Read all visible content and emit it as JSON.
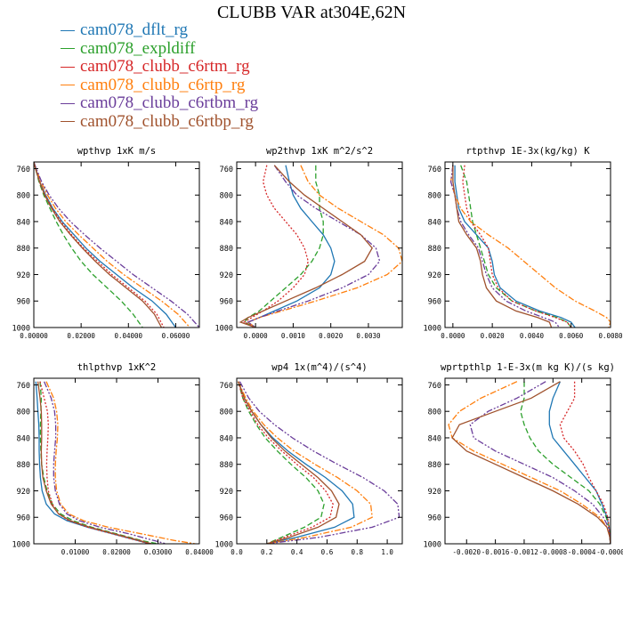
{
  "title": "CLUBB VAR at304E,62N",
  "legend": [
    {
      "name": "cam078_dflt_rg",
      "color": "#1f77b4"
    },
    {
      "name": "cam078_expldiff",
      "color": "#2ca02c"
    },
    {
      "name": "cam078_clubb_c6rtm_rg",
      "color": "#d62728"
    },
    {
      "name": "cam078_clubb_c6rtp_rg",
      "color": "#ff7f0e"
    },
    {
      "name": "cam078_clubb_c6rtbm_rg",
      "color": "#6a3d9a"
    },
    {
      "name": "cam078_clubb_c6rtbp_rg",
      "color": "#a0522d"
    }
  ],
  "chart_data": [
    {
      "type": "line",
      "title": "wpthvp  1xK m/s",
      "xlim": [
        0,
        0.07
      ],
      "ylim": [
        1000,
        750
      ],
      "xticks": [
        0,
        0.02,
        0.04,
        0.06
      ],
      "xtick_labels": [
        "0.00000",
        "0.02000",
        "0.04000",
        "0.06000"
      ],
      "yticks": [
        760,
        800,
        840,
        880,
        920,
        960,
        1000
      ],
      "y": [
        750,
        760,
        780,
        800,
        820,
        840,
        860,
        880,
        900,
        920,
        940,
        960,
        980,
        1000
      ],
      "series": [
        {
          "name": "cam078_dflt_rg",
          "values": [
            0,
            0.0008,
            0.0025,
            0.005,
            0.008,
            0.012,
            0.017,
            0.022,
            0.028,
            0.035,
            0.042,
            0.05,
            0.056,
            0.06
          ]
        },
        {
          "name": "cam078_expldiff",
          "values": [
            0,
            0.0007,
            0.0022,
            0.0042,
            0.0068,
            0.0095,
            0.0125,
            0.016,
            0.02,
            0.025,
            0.031,
            0.037,
            0.042,
            0.046
          ]
        },
        {
          "name": "cam078_clubb_c6rtm_rg",
          "values": [
            0,
            0.0008,
            0.0025,
            0.0048,
            0.0078,
            0.0115,
            0.016,
            0.021,
            0.027,
            0.033,
            0.04,
            0.047,
            0.052,
            0.055
          ]
        },
        {
          "name": "cam078_clubb_c6rtp_rg",
          "values": [
            0,
            0.0009,
            0.003,
            0.0058,
            0.0092,
            0.0135,
            0.019,
            0.025,
            0.031,
            0.038,
            0.046,
            0.054,
            0.061,
            0.066
          ]
        },
        {
          "name": "cam078_clubb_c6rtbm_rg",
          "values": [
            0,
            0.001,
            0.0033,
            0.0065,
            0.0105,
            0.0155,
            0.0215,
            0.028,
            0.035,
            0.042,
            0.05,
            0.058,
            0.065,
            0.07
          ]
        },
        {
          "name": "cam078_clubb_c6rtbp_rg",
          "values": [
            0,
            0.0007,
            0.0024,
            0.0046,
            0.0075,
            0.011,
            0.0155,
            0.0205,
            0.026,
            0.032,
            0.039,
            0.046,
            0.051,
            0.054
          ]
        }
      ]
    },
    {
      "type": "line",
      "title": "wp2thvp  1xK m^2/s^2",
      "xlim": [
        -0.0005,
        0.0039
      ],
      "ylim": [
        1000,
        750
      ],
      "xticks": [
        0,
        0.001,
        0.002,
        0.003
      ],
      "xtick_labels": [
        "0.0000",
        "0.0010",
        "0.0020",
        "0.0030"
      ],
      "yticks": [
        760,
        800,
        840,
        880,
        920,
        960,
        1000
      ],
      "y": [
        755,
        780,
        800,
        820,
        840,
        860,
        880,
        900,
        920,
        940,
        960,
        975,
        985,
        992,
        1000
      ],
      "series": [
        {
          "name": "cam078_dflt_rg",
          "values": [
            0.0008,
            0.0009,
            0.001,
            0.0012,
            0.0015,
            0.0018,
            0.002,
            0.0021,
            0.002,
            0.0017,
            0.0011,
            0.0005,
            0.0001,
            -0.0002,
            0
          ]
        },
        {
          "name": "cam078_expldiff",
          "values": [
            0.0016,
            0.0016,
            0.0017,
            0.0017,
            0.0018,
            0.0018,
            0.0017,
            0.0015,
            0.0012,
            0.0008,
            0.0004,
            0.0001,
            -0.0002,
            -0.0003,
            0
          ]
        },
        {
          "name": "cam078_clubb_c6rtm_rg",
          "values": [
            0.0003,
            0.0002,
            0.0003,
            0.0005,
            0.0008,
            0.0011,
            0.0013,
            0.0014,
            0.0013,
            0.001,
            0.0006,
            0.0002,
            -0.0001,
            -0.0003,
            0
          ]
        },
        {
          "name": "cam078_clubb_c6rtp_rg",
          "values": [
            0.0012,
            0.0014,
            0.0017,
            0.0022,
            0.0028,
            0.0034,
            0.0038,
            0.0039,
            0.0035,
            0.0027,
            0.0016,
            0.0007,
            0.0001,
            -0.0002,
            0
          ]
        },
        {
          "name": "cam078_clubb_c6rtbm_rg",
          "values": [
            0.0005,
            0.0008,
            0.0011,
            0.0016,
            0.0022,
            0.0028,
            0.0032,
            0.0033,
            0.003,
            0.0023,
            0.0014,
            0.0006,
            0.0001,
            -0.0002,
            0
          ]
        },
        {
          "name": "cam078_clubb_c6rtbp_rg",
          "values": [
            0.0005,
            0.0009,
            0.0013,
            0.0018,
            0.0023,
            0.0028,
            0.0031,
            0.0029,
            0.0023,
            0.0016,
            0.0008,
            0.0002,
            -0.0002,
            -0.0004,
            0
          ]
        }
      ]
    },
    {
      "type": "line",
      "title": "rtpthvp  1E-3x(kg/kg) K",
      "xlim": [
        -0.0004,
        0.008
      ],
      "ylim": [
        1000,
        750
      ],
      "xticks": [
        0,
        0.002,
        0.004,
        0.006,
        0.008
      ],
      "xtick_labels": [
        "0.0000",
        "0.0020",
        "0.0040",
        "0.0060",
        "0.0080"
      ],
      "yticks": [
        760,
        800,
        840,
        880,
        920,
        960,
        1000
      ],
      "y": [
        755,
        780,
        800,
        820,
        840,
        860,
        880,
        900,
        920,
        940,
        960,
        975,
        985,
        992,
        1000
      ],
      "series": [
        {
          "name": "cam078_dflt_rg",
          "values": [
            0.0001,
            0.0001,
            0.0002,
            0.0003,
            0.0006,
            0.0012,
            0.0018,
            0.002,
            0.0021,
            0.0024,
            0.0032,
            0.0044,
            0.0055,
            0.006,
            0.0062
          ]
        },
        {
          "name": "cam078_expldiff",
          "values": [
            0.0004,
            0.0007,
            0.0008,
            0.0009,
            0.001,
            0.0012,
            0.0014,
            0.0016,
            0.0018,
            0.0022,
            0.003,
            0.0042,
            0.0053,
            0.0058,
            0.006
          ]
        },
        {
          "name": "cam078_clubb_c6rtm_rg",
          "values": [
            0.0006,
            0.0005,
            0.0006,
            0.0007,
            0.0009,
            0.0014,
            0.0018,
            0.0019,
            0.002,
            0.0023,
            0.003,
            0.0042,
            0.0052,
            0.0058,
            0.006
          ]
        },
        {
          "name": "cam078_clubb_c6rtp_rg",
          "values": [
            0,
            -0.0001,
            0.0001,
            0.0004,
            0.0009,
            0.0018,
            0.0028,
            0.0036,
            0.0044,
            0.0052,
            0.0062,
            0.0072,
            0.0078,
            0.008,
            0.0079
          ]
        },
        {
          "name": "cam078_clubb_c6rtbm_rg",
          "values": [
            0,
            -0.0001,
            0.0001,
            0.0002,
            0.0004,
            0.0008,
            0.0013,
            0.0015,
            0.0017,
            0.002,
            0.0027,
            0.0037,
            0.0046,
            0.0052,
            0.0054
          ]
        },
        {
          "name": "cam078_clubb_c6rtbp_rg",
          "values": [
            0,
            0,
            0.0001,
            0.0002,
            0.0003,
            0.0007,
            0.0012,
            0.0014,
            0.0015,
            0.0017,
            0.0022,
            0.0032,
            0.0043,
            0.0049,
            0.005
          ]
        }
      ]
    },
    {
      "type": "line",
      "title": "thlpthvp  1xK^2",
      "xlim": [
        0,
        0.04
      ],
      "ylim": [
        1000,
        750
      ],
      "xticks": [
        0.01,
        0.02,
        0.03,
        0.04
      ],
      "xtick_labels": [
        "0.01000",
        "0.02000",
        "0.03000",
        "0.04000"
      ],
      "yticks": [
        760,
        800,
        840,
        880,
        920,
        960,
        1000
      ],
      "y": [
        755,
        780,
        800,
        820,
        840,
        860,
        880,
        900,
        920,
        940,
        955,
        965,
        975,
        985,
        995,
        1000
      ],
      "series": [
        {
          "name": "cam078_dflt_rg",
          "values": [
            0.0005,
            0.0008,
            0.001,
            0.0012,
            0.0013,
            0.0013,
            0.0014,
            0.0016,
            0.002,
            0.003,
            0.005,
            0.008,
            0.013,
            0.019,
            0.025,
            0.028
          ]
        },
        {
          "name": "cam078_expldiff",
          "values": [
            0.0015,
            0.0018,
            0.0017,
            0.0016,
            0.0016,
            0.0017,
            0.0019,
            0.0024,
            0.0032,
            0.0045,
            0.0065,
            0.0095,
            0.014,
            0.02,
            0.026,
            0.03
          ]
        },
        {
          "name": "cam078_clubb_c6rtm_rg",
          "values": [
            0.0015,
            0.0025,
            0.0033,
            0.0035,
            0.0034,
            0.0032,
            0.0031,
            0.0032,
            0.0035,
            0.0045,
            0.006,
            0.0085,
            0.013,
            0.019,
            0.025,
            0.028
          ]
        },
        {
          "name": "cam078_clubb_c6rtp_rg",
          "values": [
            0.003,
            0.0048,
            0.0055,
            0.0058,
            0.0057,
            0.0054,
            0.0052,
            0.0052,
            0.0055,
            0.0065,
            0.0085,
            0.012,
            0.018,
            0.026,
            0.034,
            0.039
          ]
        },
        {
          "name": "cam078_clubb_c6rtbm_rg",
          "values": [
            0.0025,
            0.0042,
            0.005,
            0.0053,
            0.0053,
            0.005,
            0.0048,
            0.0048,
            0.0052,
            0.0062,
            0.008,
            0.011,
            0.016,
            0.023,
            0.029,
            0.032
          ]
        },
        {
          "name": "cam078_clubb_c6rtbp_rg",
          "values": [
            0.001,
            0.0015,
            0.0018,
            0.0019,
            0.0019,
            0.0018,
            0.0019,
            0.0022,
            0.003,
            0.0042,
            0.006,
            0.0088,
            0.0135,
            0.0195,
            0.0255,
            0.0285
          ]
        }
      ]
    },
    {
      "type": "line",
      "title": "wp4  1x(m^4)/(s^4)",
      "xlim": [
        0,
        1.1
      ],
      "ylim": [
        1000,
        750
      ],
      "xticks": [
        0,
        0.2,
        0.4,
        0.6,
        0.8,
        1.0
      ],
      "xtick_labels": [
        "0.0",
        "0.2",
        "0.4",
        "0.6",
        "0.8",
        "1.0"
      ],
      "yticks": [
        760,
        800,
        840,
        880,
        920,
        960,
        1000
      ],
      "y": [
        755,
        780,
        800,
        820,
        840,
        860,
        880,
        900,
        920,
        940,
        960,
        975,
        990,
        1000
      ],
      "series": [
        {
          "name": "cam078_dflt_rg",
          "values": [
            0.01,
            0.05,
            0.1,
            0.16,
            0.24,
            0.34,
            0.46,
            0.59,
            0.7,
            0.77,
            0.78,
            0.65,
            0.4,
            0.2
          ]
        },
        {
          "name": "cam078_expldiff",
          "values": [
            0.01,
            0.04,
            0.08,
            0.13,
            0.19,
            0.27,
            0.36,
            0.46,
            0.54,
            0.58,
            0.56,
            0.45,
            0.3,
            0.2
          ]
        },
        {
          "name": "cam078_clubb_c6rtm_rg",
          "values": [
            0.01,
            0.04,
            0.09,
            0.14,
            0.21,
            0.3,
            0.4,
            0.51,
            0.59,
            0.64,
            0.62,
            0.5,
            0.32,
            0.2
          ]
        },
        {
          "name": "cam078_clubb_c6rtp_rg",
          "values": [
            0.01,
            0.06,
            0.11,
            0.18,
            0.27,
            0.38,
            0.52,
            0.67,
            0.8,
            0.89,
            0.9,
            0.76,
            0.46,
            0.2
          ]
        },
        {
          "name": "cam078_clubb_c6rtbm_rg",
          "values": [
            0.02,
            0.08,
            0.15,
            0.25,
            0.37,
            0.51,
            0.67,
            0.84,
            0.98,
            1.07,
            1.08,
            0.9,
            0.55,
            0.2
          ]
        },
        {
          "name": "cam078_clubb_c6rtbp_rg",
          "values": [
            0.01,
            0.05,
            0.1,
            0.16,
            0.23,
            0.32,
            0.43,
            0.54,
            0.63,
            0.68,
            0.66,
            0.54,
            0.35,
            0.2
          ]
        }
      ]
    },
    {
      "type": "line",
      "title": "wprtpthlp  1-E-3x(m kg K)/(s kg)",
      "xlim": [
        -0.0023,
        0
      ],
      "ylim": [
        1000,
        750
      ],
      "xticks": [
        -0.002,
        -0.0016,
        -0.0012,
        -0.0008,
        -0.0004,
        0
      ],
      "xtick_labels": [
        "-0.0020",
        "-0.0016",
        "-0.0012",
        "-0.0008",
        "-0.0004",
        "-0.0000"
      ],
      "yticks": [
        760,
        800,
        840,
        880,
        920,
        960,
        1000
      ],
      "y": [
        755,
        780,
        800,
        820,
        840,
        860,
        880,
        900,
        920,
        940,
        960,
        975,
        990,
        1000
      ],
      "series": [
        {
          "name": "cam078_dflt_rg",
          "values": [
            -0.0007,
            -0.0008,
            -0.00085,
            -0.00085,
            -0.0008,
            -0.00065,
            -0.0005,
            -0.00035,
            -0.0002,
            -0.00012,
            -5e-05,
            -2e-05,
            -1e-05,
            0
          ]
        },
        {
          "name": "cam078_expldiff",
          "values": [
            -0.0012,
            -0.0012,
            -0.00125,
            -0.0012,
            -0.00112,
            -0.001,
            -0.0008,
            -0.00055,
            -0.0003,
            -0.00015,
            -6e-05,
            -2e-05,
            -1e-05,
            0
          ]
        },
        {
          "name": "cam078_clubb_c6rtm_rg",
          "values": [
            -0.0005,
            -0.0005,
            -0.0006,
            -0.0007,
            -0.00065,
            -0.0005,
            -0.00038,
            -0.0003,
            -0.0002,
            -0.0001,
            -4e-05,
            -2e-05,
            -1e-05,
            0
          ]
        },
        {
          "name": "cam078_clubb_c6rtp_rg",
          "values": [
            -0.0013,
            -0.0018,
            -0.0021,
            -0.00225,
            -0.0022,
            -0.0019,
            -0.0015,
            -0.0011,
            -0.0007,
            -0.0004,
            -0.00015,
            -5e-05,
            -1e-05,
            0
          ]
        },
        {
          "name": "cam078_clubb_c6rtbm_rg",
          "values": [
            -0.0009,
            -0.0013,
            -0.0017,
            -0.00195,
            -0.0019,
            -0.0016,
            -0.0012,
            -0.0008,
            -0.0005,
            -0.00025,
            -0.0001,
            -3e-05,
            -1e-05,
            0
          ]
        },
        {
          "name": "cam078_clubb_c6rtbp_rg",
          "values": [
            -0.0007,
            -0.0011,
            -0.0016,
            -0.0021,
            -0.0022,
            -0.002,
            -0.0016,
            -0.0012,
            -0.0008,
            -0.00045,
            -0.00018,
            -5e-05,
            -1e-05,
            0
          ]
        }
      ]
    }
  ]
}
